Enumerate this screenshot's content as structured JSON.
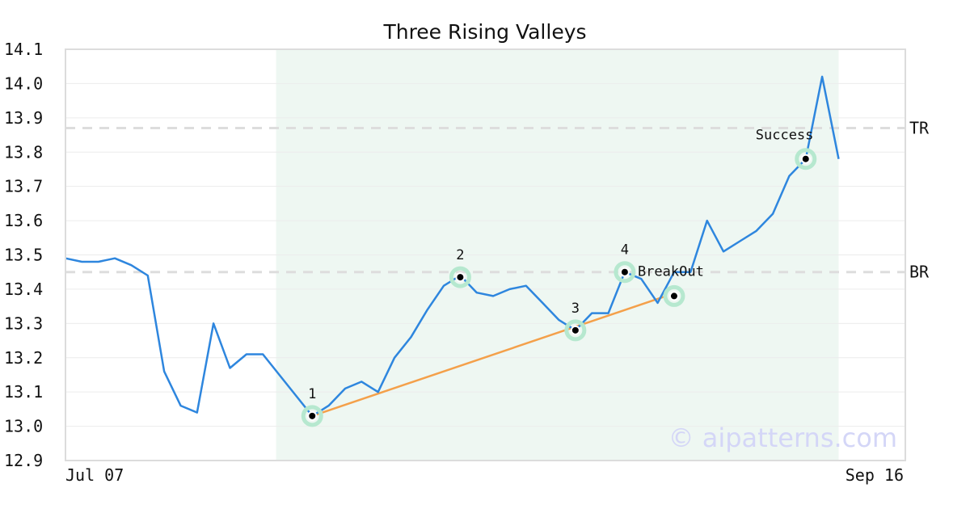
{
  "chart_data": {
    "type": "line",
    "title": "Three Rising Valleys",
    "xlabel": "",
    "ylabel": "",
    "ylim": [
      12.9,
      14.1
    ],
    "y_ticks": [
      "12.9",
      "13.0",
      "13.1",
      "13.2",
      "13.3",
      "13.4",
      "13.5",
      "13.6",
      "13.7",
      "13.8",
      "13.9",
      "14.0",
      "14.1"
    ],
    "x_tick_labels": [
      "Jul 07",
      "Sep 16"
    ],
    "grid": true,
    "series": [
      {
        "values": [
          13.49,
          13.48,
          13.48,
          13.49,
          13.47,
          13.44,
          13.16,
          13.06,
          13.04,
          13.3,
          13.17,
          13.21,
          13.21,
          13.15,
          13.09,
          13.03,
          13.06,
          13.11,
          13.13,
          13.1,
          13.2,
          13.26,
          13.34,
          13.41,
          13.44,
          13.39,
          13.38,
          13.4,
          13.41,
          13.36,
          13.31,
          13.28,
          13.33,
          13.33,
          13.45,
          13.43,
          13.36,
          13.45,
          13.45,
          13.6,
          13.51,
          13.54,
          13.57,
          13.62,
          13.73,
          13.78,
          14.02,
          13.78
        ],
        "color": "#2e86de"
      }
    ],
    "shaded_index_range": [
      13,
      47
    ],
    "shade_color": "#eef7f2",
    "levels": [
      {
        "label": "TR",
        "value": 13.87
      },
      {
        "label": "BR",
        "value": 13.45
      }
    ],
    "trendline": {
      "from_index": 15,
      "from_value": 13.03,
      "to_index": 37,
      "to_value": 13.38,
      "color": "#f4a04a"
    },
    "points": [
      {
        "label": "1",
        "index": 15,
        "value": 13.03,
        "label_pos": "above"
      },
      {
        "label": "2",
        "index": 24,
        "value": 13.435,
        "label_pos": "above"
      },
      {
        "label": "3",
        "index": 31,
        "value": 13.28,
        "label_pos": "above"
      },
      {
        "label": "4",
        "index": 34,
        "value": 13.45,
        "label_pos": "above"
      },
      {
        "label": "BreakOut",
        "index": 37,
        "value": 13.38,
        "label_pos": "upper-left"
      },
      {
        "label": "Success",
        "index": 45,
        "value": 13.78,
        "label_pos": "upper-left"
      }
    ],
    "watermark": "© aipatterns.com"
  }
}
